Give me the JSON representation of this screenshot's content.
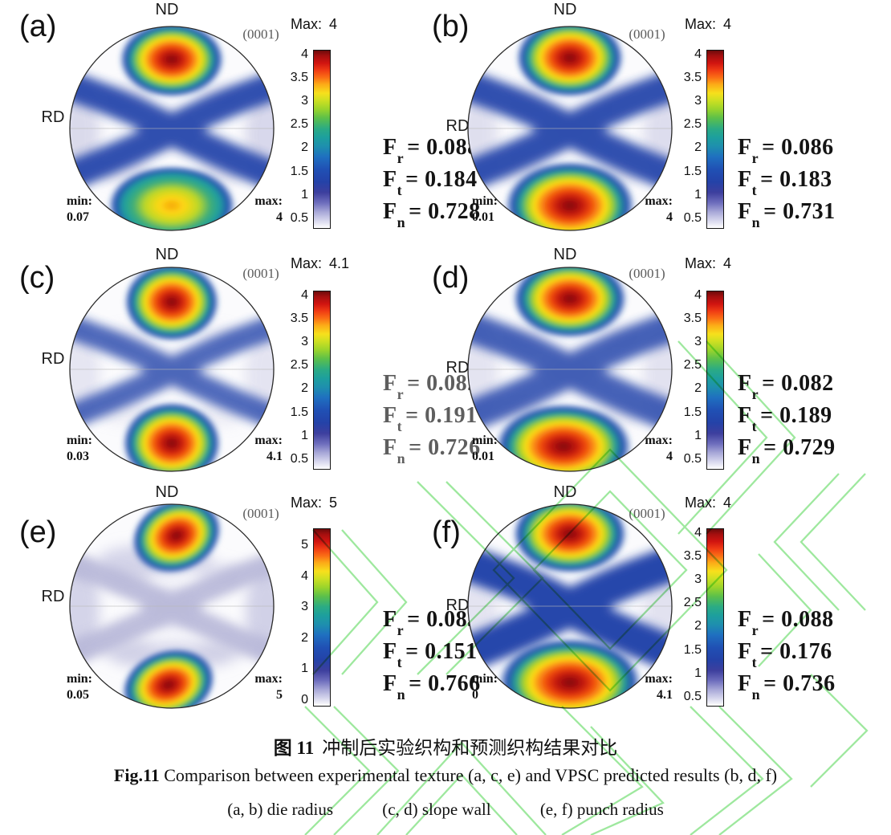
{
  "page": {
    "background": "#ffffff",
    "watermark_color": "#8ee48e"
  },
  "colors": {
    "f_text_default": "#141414",
    "f_text_muted": "#5e5e5e",
    "plane_label": "#5a5a5a",
    "band_blue": "#2746ab",
    "lavender": "#c7c7e2",
    "hot_core_red": "#7d0a08"
  },
  "panels": [
    {
      "id": "a",
      "letter": "(a)",
      "nd": "ND",
      "rd": "RD",
      "plane": "(0001)",
      "min_label": "min:",
      "min_value": "0.07",
      "max_label": "max:",
      "max_value": "4",
      "cb_title_label": "Max:",
      "cb_title_value": "4",
      "cb_ticks": [
        "4",
        "3.5",
        "3",
        "2.5",
        "2",
        "1.5",
        "1",
        "0.5"
      ],
      "f": [
        {
          "sub": "r",
          "value": "0.088"
        },
        {
          "sub": "t",
          "value": "0.184"
        },
        {
          "sub": "n",
          "value": "0.728"
        }
      ],
      "f_muted": false
    },
    {
      "id": "b",
      "letter": "(b)",
      "nd": "ND",
      "rd": "RD",
      "plane": "(0001)",
      "min_label": "min:",
      "min_value": "0.01",
      "max_label": "max:",
      "max_value": "4",
      "cb_title_label": "Max:",
      "cb_title_value": "4",
      "cb_ticks": [
        "4",
        "3.5",
        "3",
        "2.5",
        "2",
        "1.5",
        "1",
        "0.5"
      ],
      "f": [
        {
          "sub": "r",
          "value": "0.086"
        },
        {
          "sub": "t",
          "value": "0.183"
        },
        {
          "sub": "n",
          "value": "0.731"
        }
      ],
      "f_muted": false
    },
    {
      "id": "c",
      "letter": "(c)",
      "nd": "ND",
      "rd": "RD",
      "plane": "(0001)",
      "min_label": "min:",
      "min_value": "0.03",
      "max_label": "max:",
      "max_value": "4.1",
      "cb_title_label": "Max:",
      "cb_title_value": "4.1",
      "cb_ticks": [
        "4",
        "3.5",
        "3",
        "2.5",
        "2",
        "1.5",
        "1",
        "0.5"
      ],
      "f": [
        {
          "sub": "r",
          "value": "0.082"
        },
        {
          "sub": "t",
          "value": "0.191"
        },
        {
          "sub": "n",
          "value": "0.726"
        }
      ],
      "f_muted": true
    },
    {
      "id": "d",
      "letter": "(d)",
      "nd": "ND",
      "rd": "RD",
      "plane": "(0001)",
      "min_label": "min:",
      "min_value": "0.01",
      "max_label": "max:",
      "max_value": "4",
      "cb_title_label": "Max:",
      "cb_title_value": "4",
      "cb_ticks": [
        "4",
        "3.5",
        "3",
        "2.5",
        "2",
        "1.5",
        "1",
        "0.5"
      ],
      "f": [
        {
          "sub": "r",
          "value": "0.082"
        },
        {
          "sub": "t",
          "value": "0.189"
        },
        {
          "sub": "n",
          "value": "0.729"
        }
      ],
      "f_muted": false
    },
    {
      "id": "e",
      "letter": "(e)",
      "nd": "ND",
      "rd": "RD",
      "plane": "(0001)",
      "min_label": "min:",
      "min_value": "0.05",
      "max_label": "max:",
      "max_value": "5",
      "cb_title_label": "Max:",
      "cb_title_value": "5",
      "cb_ticks": [
        "5",
        "4",
        "3",
        "2",
        "1",
        "0"
      ],
      "f": [
        {
          "sub": "r",
          "value": "0.083"
        },
        {
          "sub": "t",
          "value": "0.151"
        },
        {
          "sub": "n",
          "value": "0.766"
        }
      ],
      "f_muted": false
    },
    {
      "id": "f",
      "letter": "(f)",
      "nd": "ND",
      "rd": "RD",
      "plane": "(0001)",
      "min_label": "min:",
      "min_value": "0",
      "max_label": "max:",
      "max_value": "4.1",
      "cb_title_label": "Max:",
      "cb_title_value": "4",
      "cb_ticks": [
        "4",
        "3.5",
        "3",
        "2.5",
        "2",
        "1.5",
        "1",
        "0.5"
      ],
      "f": [
        {
          "sub": "r",
          "value": "0.088"
        },
        {
          "sub": "t",
          "value": "0.176"
        },
        {
          "sub": "n",
          "value": "0.736"
        }
      ],
      "f_muted": false
    }
  ],
  "caption": {
    "line1_prefix": "图 11",
    "line1_text": "冲制后实验织构和预测织构结果对比",
    "line2_prefix": "Fig.11",
    "line2_text": " Comparison between experimental texture (a, c, e) and VPSC predicted results (b, d, f)",
    "line3_items": [
      "(a, b) die radius",
      "(c, d) slope wall",
      "(e, f) punch radius"
    ]
  }
}
